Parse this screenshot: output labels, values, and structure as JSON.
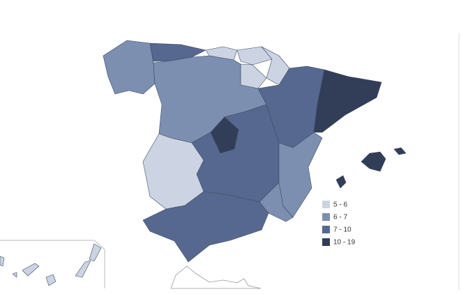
{
  "legend": {
    "items": [
      {
        "label": "5 - 6",
        "color": "#ccd3e2"
      },
      {
        "label": "6 - 7",
        "color": "#7d8fb0"
      },
      {
        "label": "7 - 10",
        "color": "#56688f"
      },
      {
        "label": "10 - 19",
        "color": "#323e58"
      }
    ]
  }
}
